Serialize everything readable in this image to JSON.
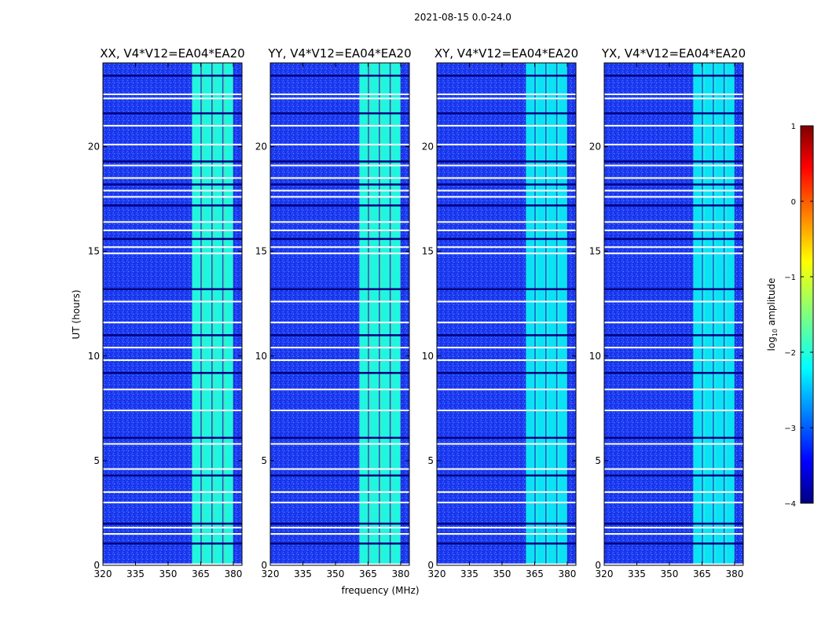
{
  "figure": {
    "suptitle": "2021-08-15 0.0-24.0",
    "ylabel": "UT (hours)",
    "xlabel": "frequency (MHz)"
  },
  "colorbar": {
    "label_prefix": "log",
    "label_sub": "10",
    "label_suffix": " amplitude",
    "ticks": [
      "1",
      "0",
      "−1",
      "−2",
      "−3",
      "−4"
    ],
    "tick_values": [
      1,
      0,
      -1,
      -2,
      -3,
      -4
    ],
    "range": [
      -4,
      1
    ],
    "colormap": "jet",
    "colors": [
      "#00007f",
      "#0000ff",
      "#007fff",
      "#00ffff",
      "#7fff7f",
      "#ffff00",
      "#ff7f00",
      "#ff0000",
      "#7f0000"
    ]
  },
  "chart_data": [
    {
      "type": "heatmap",
      "title": "XX, V4*V12=EA04*EA20",
      "xlabel": "",
      "ylabel": "UT (hours)",
      "xlim": [
        320,
        384
      ],
      "ylim": [
        0,
        24
      ],
      "xticks": [
        320,
        335,
        350,
        365,
        380
      ],
      "yticks": [
        0,
        5,
        10,
        15,
        20
      ],
      "background_log10_amplitude": -3.3,
      "rfi_band_mhz": [
        361,
        380
      ],
      "rfi_band_log10_amplitude": -1.8,
      "rfi_subbands_mhz": [
        [
          361,
          365
        ],
        [
          366,
          370
        ],
        [
          371,
          375
        ],
        [
          376,
          380
        ]
      ]
    },
    {
      "type": "heatmap",
      "title": "YY, V4*V12=EA04*EA20",
      "xlabel": "frequency (MHz)",
      "ylabel": "",
      "xlim": [
        320,
        384
      ],
      "ylim": [
        0,
        24
      ],
      "xticks": [
        320,
        335,
        350,
        365,
        380
      ],
      "yticks": [
        0,
        5,
        10,
        15,
        20
      ],
      "background_log10_amplitude": -3.3,
      "rfi_band_mhz": [
        361,
        380
      ],
      "rfi_band_log10_amplitude": -1.8,
      "rfi_subbands_mhz": [
        [
          361,
          365
        ],
        [
          366,
          370
        ],
        [
          371,
          375
        ],
        [
          376,
          380
        ]
      ]
    },
    {
      "type": "heatmap",
      "title": "XY, V4*V12=EA04*EA20",
      "xlabel": "",
      "ylabel": "",
      "xlim": [
        320,
        384
      ],
      "ylim": [
        0,
        24
      ],
      "xticks": [
        320,
        335,
        350,
        365,
        380
      ],
      "yticks": [
        0,
        5,
        10,
        15,
        20
      ],
      "background_log10_amplitude": -3.3,
      "rfi_band_mhz": [
        361,
        380
      ],
      "rfi_band_log10_amplitude": -2.0,
      "rfi_subbands_mhz": [
        [
          361,
          365
        ],
        [
          366,
          370
        ],
        [
          371,
          375
        ],
        [
          376,
          380
        ]
      ]
    },
    {
      "type": "heatmap",
      "title": "YX, V4*V12=EA04*EA20",
      "xlabel": "",
      "ylabel": "",
      "xlim": [
        320,
        384
      ],
      "ylim": [
        0,
        24
      ],
      "xticks": [
        320,
        335,
        350,
        365,
        380
      ],
      "yticks": [
        0,
        5,
        10,
        15,
        20
      ],
      "background_log10_amplitude": -3.3,
      "rfi_band_mhz": [
        361,
        380
      ],
      "rfi_band_log10_amplitude": -2.0,
      "rfi_subbands_mhz": [
        [
          361,
          365
        ],
        [
          366,
          370
        ],
        [
          371,
          375
        ],
        [
          376,
          380
        ]
      ]
    }
  ],
  "flagged_times_hours": [
    0.05,
    1.05,
    1.5,
    1.8,
    2.0,
    3.0,
    3.5,
    4.3,
    4.6,
    5.8,
    6.1,
    7.4,
    8.4,
    9.2,
    9.8,
    10.4,
    11.0,
    11.6,
    12.6,
    13.2,
    14.9,
    15.2,
    15.6,
    16.0,
    16.4,
    17.2,
    17.6,
    17.9,
    18.2,
    18.5,
    19.1,
    19.3,
    20.1,
    21.0,
    21.6,
    22.3,
    22.5,
    23.4
  ]
}
